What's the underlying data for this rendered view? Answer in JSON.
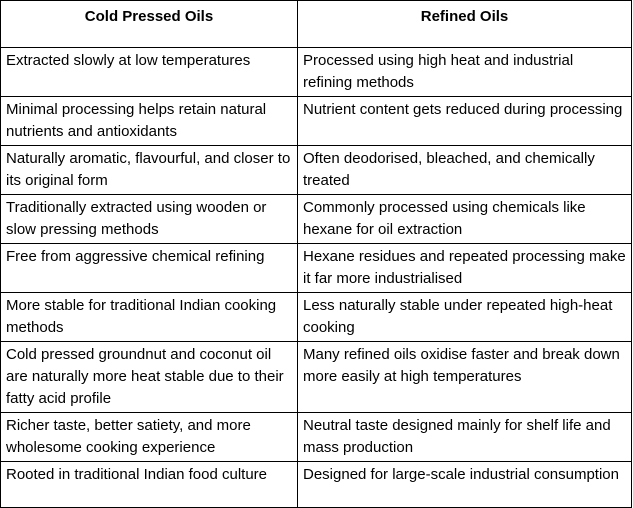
{
  "table": {
    "headers": [
      "Cold Pressed Oils",
      "Refined Oils"
    ],
    "rows": [
      [
        "Extracted slowly at low temperatures",
        "Processed using high heat and industrial refining methods"
      ],
      [
        "Minimal processing helps retain natural nutrients and antioxidants",
        "Nutrient content gets reduced during processing"
      ],
      [
        "Naturally aromatic, flavourful, and closer to its original form",
        "Often deodorised, bleached, and chemically treated"
      ],
      [
        "Traditionally extracted using wooden or slow pressing methods",
        "Commonly processed using chemicals like hexane for oil extraction"
      ],
      [
        "Free from aggressive chemical refining",
        "Hexane residues and repeated processing make it far more industrialised"
      ],
      [
        "More stable for traditional Indian cooking methods",
        "Less naturally stable under repeated high-heat cooking"
      ],
      [
        "Cold pressed groundnut and coconut oil are naturally more heat stable due to their fatty acid profile",
        "Many refined oils oxidise faster and break down more easily at high temperatures"
      ],
      [
        "Richer taste, better satiety, and more wholesome cooking experience",
        "Neutral taste designed mainly for shelf life and mass production"
      ],
      [
        "Rooted in traditional Indian food culture",
        "Designed for large-scale industrial consumption"
      ]
    ]
  }
}
